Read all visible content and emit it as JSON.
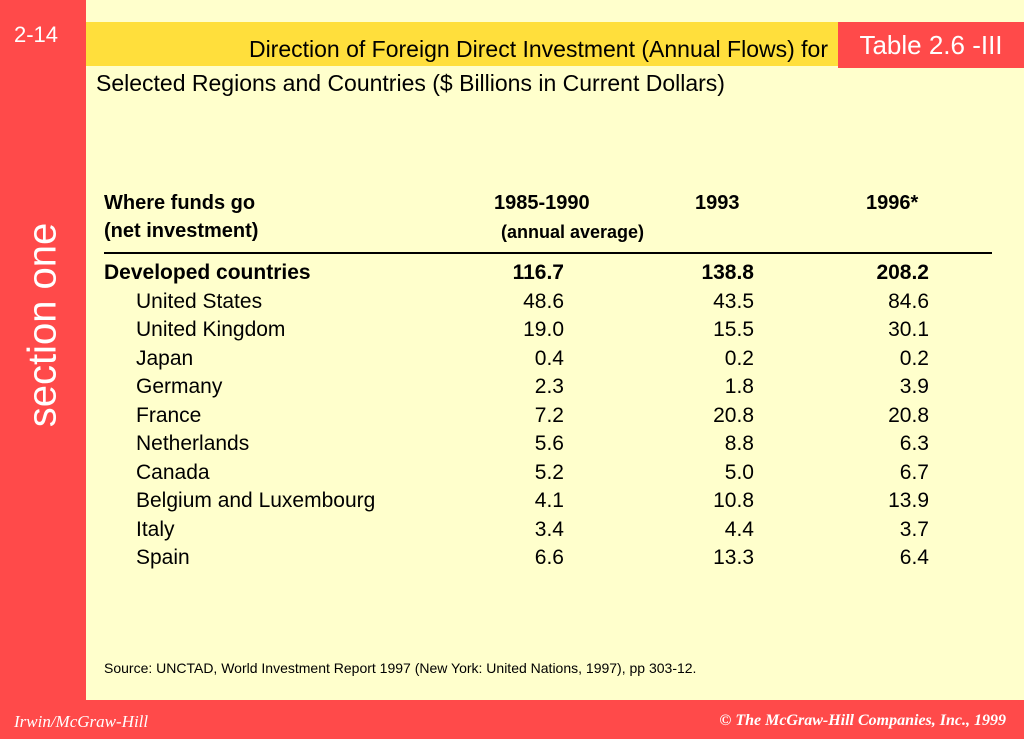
{
  "slide": {
    "number": "2-14",
    "section_label": "section one",
    "table_tag": "Table 2.6 -III",
    "title_line1": "Direction of Foreign Direct Investment (Annual Flows) for",
    "title_line2": "Selected Regions and Countries ($ Billions in Current Dollars)"
  },
  "table": {
    "header": {
      "col0_line1": "Where funds go",
      "col0_line2": "(net investment)",
      "col1_line1": "1985-1990",
      "col1_line2": "(annual average)",
      "col2": "1993",
      "col3": "1996*"
    },
    "rows": [
      {
        "name": "Developed countries",
        "v1": "116.7",
        "v2": "138.8",
        "v3": "208.2"
      },
      {
        "name": "United States",
        "v1": "48.6",
        "v2": "43.5",
        "v3": "84.6"
      },
      {
        "name": "United Kingdom",
        "v1": "19.0",
        "v2": "15.5",
        "v3": "30.1"
      },
      {
        "name": "Japan",
        "v1": "0.4",
        "v2": "0.2",
        "v3": "0.2"
      },
      {
        "name": "Germany",
        "v1": "2.3",
        "v2": "1.8",
        "v3": "3.9"
      },
      {
        "name": "France",
        "v1": "7.2",
        "v2": "20.8",
        "v3": "20.8"
      },
      {
        "name": "Netherlands",
        "v1": "5.6",
        "v2": "8.8",
        "v3": "6.3"
      },
      {
        "name": "Canada",
        "v1": "5.2",
        "v2": "5.0",
        "v3": "6.7"
      },
      {
        "name": "Belgium and Luxembourg",
        "v1": "4.1",
        "v2": "10.8",
        "v3": "13.9"
      },
      {
        "name": "Italy",
        "v1": "3.4",
        "v2": "4.4",
        "v3": "3.7"
      },
      {
        "name": "Spain",
        "v1": "6.6",
        "v2": "13.3",
        "v3": "6.4"
      }
    ]
  },
  "source": "Source: UNCTAD, World Investment Report 1997 (New York: United Nations, 1997), pp 303-12.",
  "footer": {
    "left": "Irwin/McGraw-Hill",
    "right": "© The McGraw-Hill Companies, Inc., 1999"
  },
  "colors": {
    "accent_red": "#ff4a4a",
    "title_yellow": "#ffdf3c",
    "content_background": "#ffffcc"
  }
}
